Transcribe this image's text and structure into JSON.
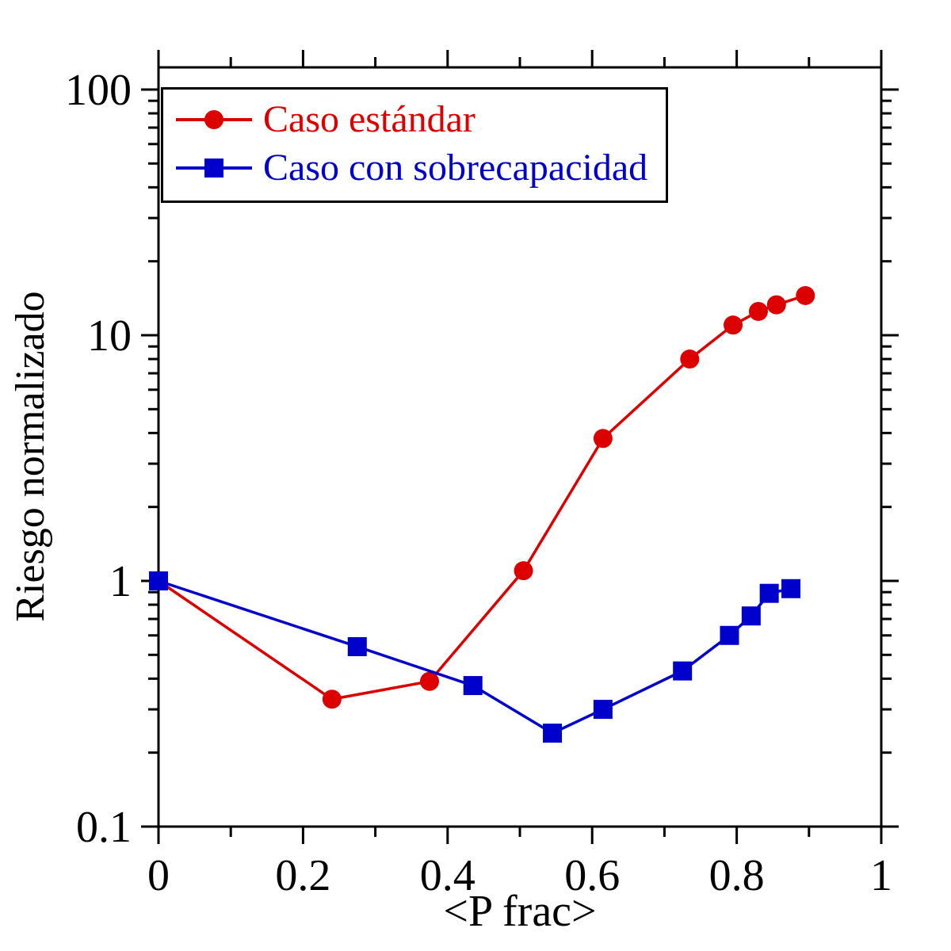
{
  "chart_data": {
    "type": "line",
    "title": "",
    "xlabel": "<P frac>",
    "ylabel": "Riesgo normalizado",
    "xlim": [
      0,
      1
    ],
    "ylim": [
      0.1,
      100
    ],
    "yscale": "log",
    "grid": false,
    "legend_position": "top-left",
    "x_ticks": {
      "values": [
        0,
        0.2,
        0.4,
        0.6,
        0.8,
        1
      ],
      "labels": [
        "0",
        "0.2",
        "0.4",
        "0.6",
        "0.8",
        "1"
      ],
      "minor_step": 0.1
    },
    "y_ticks": {
      "values": [
        0.1,
        1,
        10,
        100
      ],
      "labels": [
        "0.1",
        "1",
        "10",
        "100"
      ]
    },
    "series": [
      {
        "name": "Caso estándar",
        "color": "#dd0000",
        "marker": "circle",
        "x": [
          0,
          0.24,
          0.375,
          0.505,
          0.615,
          0.735,
          0.795,
          0.83,
          0.855,
          0.895
        ],
        "y": [
          1.0,
          0.33,
          0.39,
          1.1,
          3.8,
          8.0,
          11,
          12.5,
          13.3,
          14.5
        ]
      },
      {
        "name": "Caso con sobrecapacidad",
        "color": "#0000cc",
        "marker": "square",
        "x": [
          0,
          0.275,
          0.435,
          0.545,
          0.615,
          0.725,
          0.79,
          0.82,
          0.845,
          0.875
        ],
        "y": [
          1.0,
          0.54,
          0.375,
          0.24,
          0.3,
          0.43,
          0.6,
          0.72,
          0.89,
          0.93
        ]
      }
    ]
  }
}
